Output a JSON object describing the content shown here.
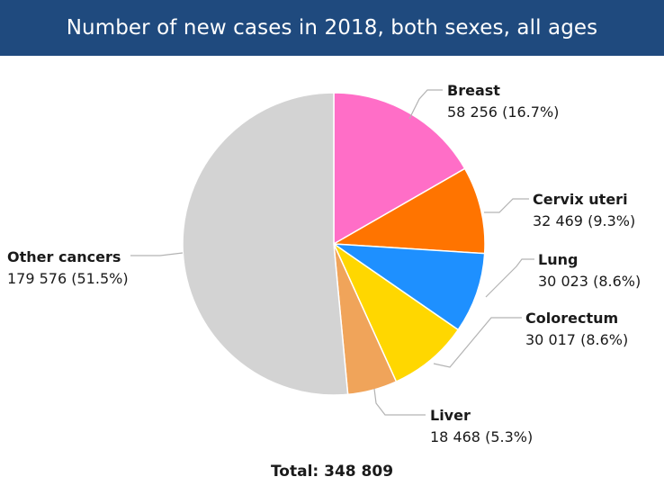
{
  "header": {
    "title": "Number of new cases in 2018, both sexes, all ages"
  },
  "chart_data": {
    "type": "pie",
    "slices": [
      {
        "label": "Breast",
        "value_text": "58 256 (16.7%)",
        "value": 58256,
        "percent": 16.7,
        "color": "#ff6ec7"
      },
      {
        "label": "Cervix uteri",
        "value_text": "32 469 (9.3%)",
        "value": 32469,
        "percent": 9.3,
        "color": "#ff7400"
      },
      {
        "label": "Lung",
        "value_text": "30 023 (8.6%)",
        "value": 30023,
        "percent": 8.6,
        "color": "#1e90ff"
      },
      {
        "label": "Colorectum",
        "value_text": "30 017 (8.6%)",
        "value": 30017,
        "percent": 8.6,
        "color": "#ffd700"
      },
      {
        "label": "Liver",
        "value_text": "18 468 (5.3%)",
        "value": 18468,
        "percent": 5.3,
        "color": "#f0a45a"
      },
      {
        "label": "Other cancers",
        "value_text": "179 576 (51.5%)",
        "value": 179576,
        "percent": 51.5,
        "color": "#d3d3d3"
      }
    ]
  },
  "footer": {
    "total": "Total: 348 809"
  }
}
